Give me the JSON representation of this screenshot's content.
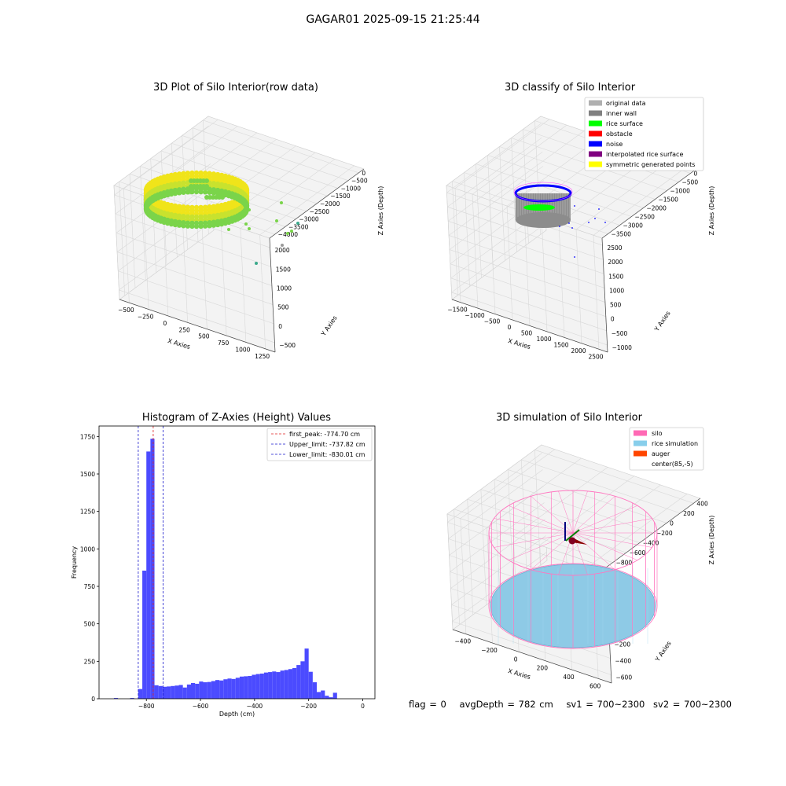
{
  "figure": {
    "suptitle": "GAGAR01 2025-09-15 21:25:44",
    "status": {
      "flag": "flag = 0",
      "avg_depth": "avgDepth = 782 cm",
      "sv1": "sv1 = 700~2300",
      "sv2": "sv2 = 700~2300"
    }
  },
  "colors": {
    "raw_points_near": "#3aa98b",
    "raw_points_mid": "#7ad44a",
    "raw_points_far": "#f0e41a",
    "histogram_bar": "#4b4bff",
    "peak_line": "#e02020",
    "limit_line": "#1a1acc",
    "silo_wire": "#ff77c0",
    "rice_surface": "#8ecae6",
    "grid_line": "#d8d8d8",
    "pane_fill": "#f3f3f3"
  },
  "chart_data": [
    {
      "type": "scatter",
      "chart_kind": "3d-scatter",
      "title": "3D Plot of Silo Interior(row data)",
      "xlabel": "X Axies",
      "ylabel": "Y Axies",
      "zlabel": "Z Axies (Depth)",
      "x_ticks": [
        "−500",
        "−250",
        "0",
        "250",
        "500",
        "750",
        "1000",
        "1250"
      ],
      "y_ticks": [
        "−500",
        "0",
        "500",
        "1000",
        "1500",
        "2000"
      ],
      "z_ticks": [
        "0",
        "−500",
        "−1000",
        "−1500",
        "−2000",
        "−2500",
        "−3000",
        "−3500",
        "−4000"
      ],
      "xlim": [
        -600,
        1350
      ],
      "ylim": [
        -600,
        2100
      ],
      "zlim": [
        -4000,
        0
      ],
      "grid": true,
      "series": [
        {
          "points_description": "dense elliptical ring of returns around the silo wall",
          "center": [
            85,
            -5
          ],
          "depth_range": [
            -1000,
            -1400
          ]
        },
        {
          "outliers": [
            [
              1280,
              520,
              -2400
            ],
            [
              1230,
              380,
              -3500
            ],
            [
              1050,
              760,
              -2300
            ],
            [
              880,
              520,
              -1700
            ],
            [
              1180,
              640,
              -2500
            ]
          ]
        }
      ]
    },
    {
      "type": "scatter",
      "chart_kind": "3d-scatter-classified",
      "title": "3D classify of Silo Interior",
      "xlabel": "X Axies",
      "ylabel": "Y Axies",
      "zlabel": "Z Axies (Depth)",
      "x_ticks": [
        "−1500",
        "−1000",
        "−500",
        "0",
        "500",
        "1000",
        "1500",
        "2000",
        "2500"
      ],
      "y_ticks": [
        "−1000",
        "−500",
        "0",
        "500",
        "1000",
        "1500",
        "2000",
        "2500"
      ],
      "z_ticks": [
        "0",
        "−500",
        "−1000",
        "−1500",
        "−2000",
        "−2500",
        "−3000",
        "−3500"
      ],
      "xlim": [
        -1600,
        2600
      ],
      "ylim": [
        -1100,
        2600
      ],
      "zlim": [
        -3600,
        0
      ],
      "grid": true,
      "legend_location": "top-right",
      "legend": [
        {
          "name": "original data",
          "color": "#b0b0b0"
        },
        {
          "name": "inner wall",
          "color": "#808080"
        },
        {
          "name": "rice surface",
          "color": "#00ff00"
        },
        {
          "name": "obstacle",
          "color": "#ff0000"
        },
        {
          "name": "noise",
          "color": "#0000ff"
        },
        {
          "name": "interpolated rice surface",
          "color": "#800080"
        },
        {
          "name": "symmetric generated points",
          "color": "#ffff00"
        }
      ]
    },
    {
      "type": "bar",
      "chart_kind": "histogram",
      "title": "Histogram of Z-Axies (Height) Values",
      "xlabel": "Depth (cm)",
      "ylabel": "Frequency",
      "xlim": [
        -975,
        45
      ],
      "ylim": [
        0,
        1820
      ],
      "x_ticks": [
        -800,
        -600,
        -400,
        -200,
        0
      ],
      "y_ticks": [
        0,
        250,
        500,
        750,
        1000,
        1250,
        1500,
        1750
      ],
      "legend_location": "top-right",
      "bins": [
        [
          -920,
          -905,
          5
        ],
        [
          -860,
          -845,
          5
        ],
        [
          -830,
          -815,
          65
        ],
        [
          -815,
          -800,
          855
        ],
        [
          -800,
          -785,
          1650
        ],
        [
          -785,
          -770,
          1735
        ],
        [
          -770,
          -755,
          90
        ],
        [
          -755,
          -740,
          85
        ],
        [
          -740,
          -725,
          80
        ],
        [
          -725,
          -710,
          82
        ],
        [
          -710,
          -695,
          85
        ],
        [
          -695,
          -680,
          88
        ],
        [
          -680,
          -665,
          92
        ],
        [
          -665,
          -650,
          75
        ],
        [
          -650,
          -635,
          95
        ],
        [
          -635,
          -620,
          105
        ],
        [
          -620,
          -605,
          100
        ],
        [
          -605,
          -590,
          115
        ],
        [
          -590,
          -575,
          110
        ],
        [
          -575,
          -560,
          112
        ],
        [
          -560,
          -545,
          118
        ],
        [
          -545,
          -530,
          125
        ],
        [
          -530,
          -515,
          122
        ],
        [
          -515,
          -500,
          130
        ],
        [
          -500,
          -485,
          135
        ],
        [
          -485,
          -470,
          132
        ],
        [
          -470,
          -455,
          140
        ],
        [
          -455,
          -440,
          148
        ],
        [
          -440,
          -425,
          150
        ],
        [
          -425,
          -410,
          152
        ],
        [
          -410,
          -395,
          160
        ],
        [
          -395,
          -380,
          165
        ],
        [
          -380,
          -365,
          168
        ],
        [
          -365,
          -350,
          175
        ],
        [
          -350,
          -335,
          178
        ],
        [
          -335,
          -320,
          182
        ],
        [
          -320,
          -305,
          178
        ],
        [
          -305,
          -290,
          188
        ],
        [
          -290,
          -275,
          192
        ],
        [
          -275,
          -260,
          198
        ],
        [
          -260,
          -245,
          205
        ],
        [
          -245,
          -230,
          225
        ],
        [
          -230,
          -215,
          250
        ],
        [
          -215,
          -200,
          335
        ],
        [
          -200,
          -185,
          180
        ],
        [
          -185,
          -170,
          110
        ],
        [
          -170,
          -155,
          45
        ],
        [
          -155,
          -140,
          55
        ],
        [
          -140,
          -125,
          20
        ],
        [
          -125,
          -110,
          10
        ],
        [
          -110,
          -95,
          40
        ]
      ],
      "vlines": [
        {
          "name": "first_peak: -774.70 cm",
          "x": -774.7,
          "color": "#e02020"
        },
        {
          "name": "Upper_limit: -737.82 cm",
          "x": -737.82,
          "color": "#1a1acc"
        },
        {
          "name": "Lower_limit: -830.01 cm",
          "x": -830.01,
          "color": "#1a1acc"
        }
      ]
    },
    {
      "type": "area",
      "chart_kind": "3d-surface-simulation",
      "title": "3D simulation of Silo Interior",
      "xlabel": "X Axies",
      "ylabel": "Y Axies",
      "zlabel": "Z Axies (Depth)",
      "x_ticks": [
        "−400",
        "−200",
        "0",
        "200",
        "400",
        "600"
      ],
      "y_ticks": [
        "−600",
        "−400",
        "−200",
        "0",
        "200",
        "400",
        "600"
      ],
      "z_ticks": [
        "400",
        "200",
        "0",
        "−200",
        "−400",
        "−600",
        "−800"
      ],
      "xlim": [
        -500,
        700
      ],
      "ylim": [
        -650,
        650
      ],
      "zlim": [
        -900,
        450
      ],
      "grid": true,
      "legend_location": "top-right",
      "legend": [
        {
          "name": "silo",
          "color": "#ff69b4"
        },
        {
          "name": "rice simulation",
          "color": "#87ceeb"
        },
        {
          "name": "auger",
          "color": "#ff4500"
        },
        {
          "name": "center(85,-5)",
          "color": ""
        }
      ],
      "silo_center": [
        85,
        -5
      ],
      "rice_depth": -782
    }
  ]
}
